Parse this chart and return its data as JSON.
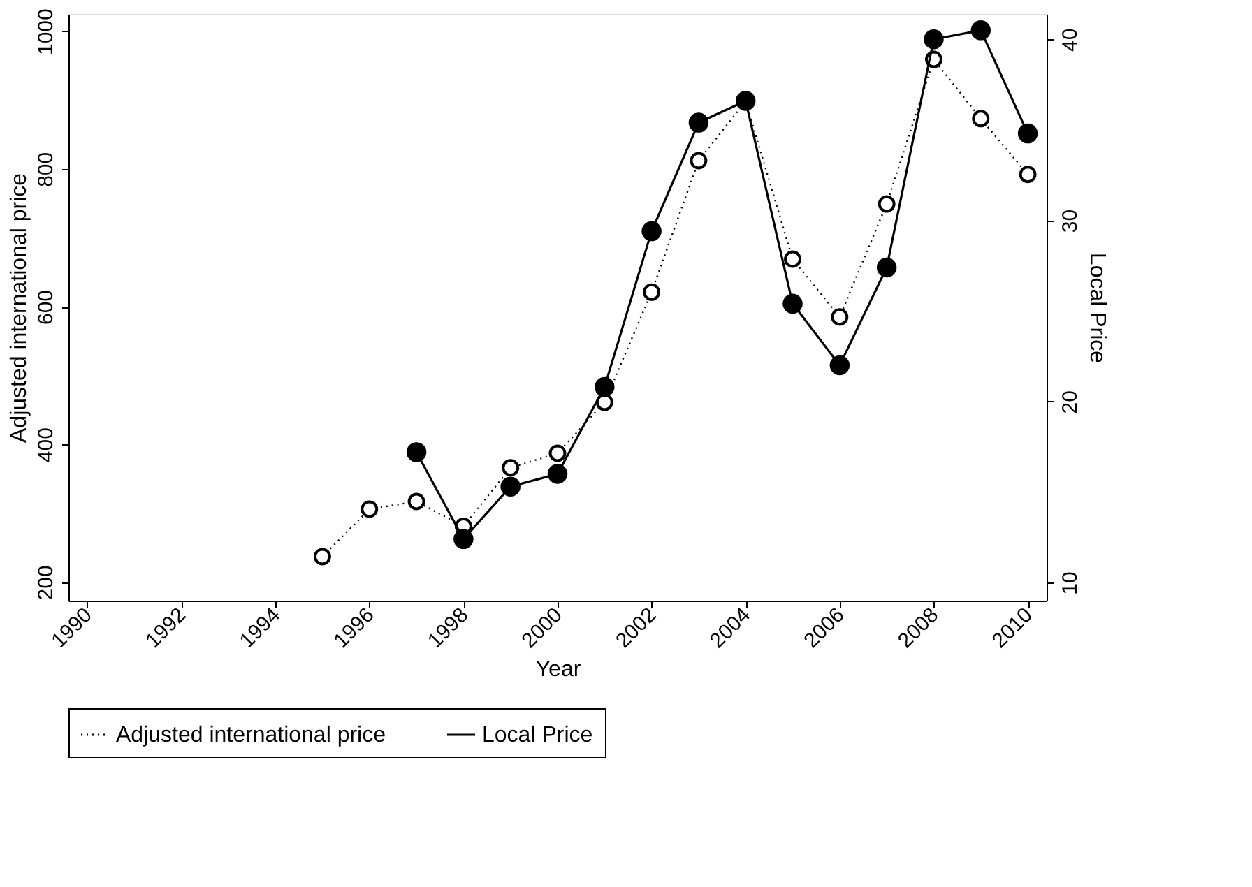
{
  "chart_data": {
    "type": "line",
    "xlabel": "Year",
    "ylabel": "Adjusted international price",
    "y2label": "Local Price",
    "x": [
      1995,
      1996,
      1997,
      1998,
      1999,
      2000,
      2001,
      2002,
      2003,
      2004,
      2005,
      2006,
      2007,
      2008,
      2009,
      2010
    ],
    "series": [
      {
        "name": "Adjusted international price",
        "color": "#000000",
        "line_style": "dotted",
        "marker": "circle",
        "values": [
          237,
          306,
          317,
          281,
          366,
          387,
          461,
          621,
          812,
          898,
          669,
          585,
          749,
          959,
          873,
          792
        ]
      },
      {
        "name": "Local Price",
        "color": "#000000",
        "line_style": "solid",
        "marker": "circle",
        "axis": "y2",
        "values": [
          null,
          null,
          17.2,
          12.4,
          15.3,
          16.0,
          20.8,
          29.4,
          35.4,
          36.6,
          25.4,
          22.0,
          27.4,
          40.0,
          40.5,
          34.8
        ]
      }
    ],
    "xlim": [
      1989.6,
      2010.4
    ],
    "xticks": [
      1990,
      1992,
      1994,
      1996,
      1998,
      2000,
      2002,
      2004,
      2006,
      2008,
      2010
    ],
    "ylim": [
      173,
      1025
    ],
    "yticks": [
      200,
      400,
      600,
      800,
      1000
    ],
    "y2lim": [
      9,
      41.4
    ],
    "y2ticks": [
      10,
      20,
      30,
      40
    ],
    "grid": false,
    "legend": "bottom"
  }
}
